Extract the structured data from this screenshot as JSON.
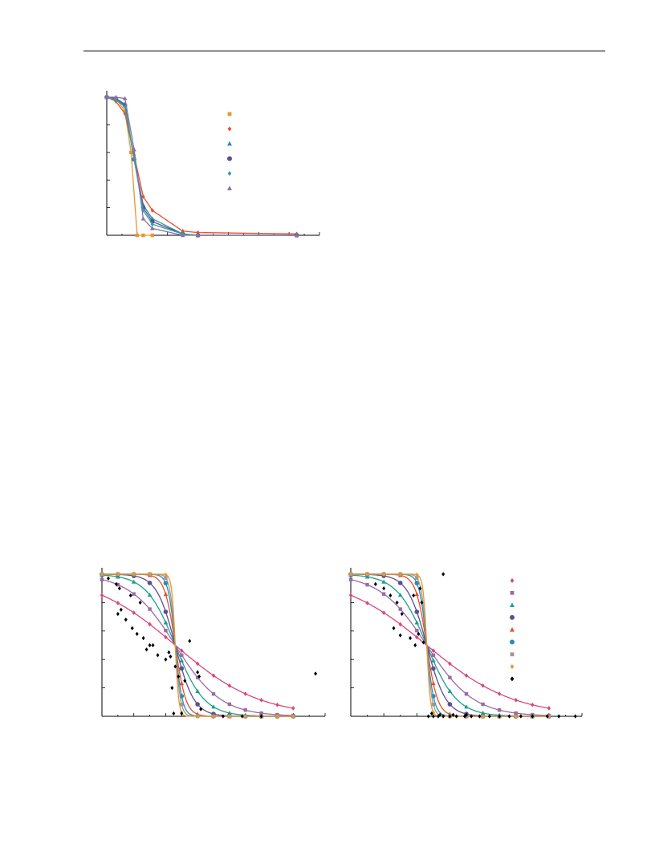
{
  "page": {
    "background": "#ffffff",
    "rule_color": "#000000"
  },
  "chart_data": [
    {
      "id": "top",
      "type": "line",
      "title": "",
      "xlabel": "",
      "ylabel": "",
      "xlim": [
        0,
        14
      ],
      "ylim": [
        0,
        1
      ],
      "grid": false,
      "legend": "top-right",
      "axis_ticks_x": [
        1,
        2,
        3,
        4,
        5,
        6,
        7,
        8,
        9,
        10,
        11,
        12,
        13,
        14
      ],
      "axis_ticks_y": [
        0.2,
        0.4,
        0.6,
        0.8,
        1.0
      ],
      "series": [
        {
          "marker": "square",
          "color": "#e8962e",
          "points": [
            [
              0,
              1.0
            ],
            [
              0.6,
              0.99
            ],
            [
              1.2,
              0.9
            ],
            [
              1.6,
              0.6
            ],
            [
              2.0,
              0.0
            ],
            [
              2.4,
              0.0
            ],
            [
              3.0,
              0.0
            ]
          ]
        },
        {
          "marker": "diamond",
          "color": "#e5502a",
          "points": [
            [
              0,
              1.0
            ],
            [
              0.6,
              0.97
            ],
            [
              1.2,
              0.88
            ],
            [
              1.8,
              0.58
            ],
            [
              2.4,
              0.28
            ],
            [
              3.0,
              0.18
            ],
            [
              5.0,
              0.03
            ],
            [
              6.0,
              0.02
            ],
            [
              12.5,
              0.01
            ]
          ]
        },
        {
          "marker": "triangle",
          "color": "#2b8bb8",
          "points": [
            [
              0,
              1.0
            ],
            [
              0.6,
              0.99
            ],
            [
              1.2,
              0.95
            ],
            [
              1.8,
              0.55
            ],
            [
              2.4,
              0.22
            ],
            [
              3.0,
              0.12
            ],
            [
              5.0,
              0.01
            ],
            [
              6.0,
              0.0
            ],
            [
              12.5,
              0.0
            ]
          ]
        },
        {
          "marker": "circle",
          "color": "#5a4f8f",
          "points": [
            [
              0,
              1.0
            ],
            [
              0.6,
              0.99
            ],
            [
              1.2,
              0.94
            ],
            [
              1.8,
              0.55
            ],
            [
              2.4,
              0.2
            ],
            [
              3.0,
              0.1
            ],
            [
              5.0,
              0.01
            ],
            [
              6.0,
              0.0
            ],
            [
              12.5,
              0.0
            ]
          ]
        },
        {
          "marker": "diamond",
          "color": "#2ba39e",
          "points": [
            [
              0,
              1.0
            ],
            [
              0.6,
              0.98
            ],
            [
              1.2,
              0.93
            ],
            [
              1.8,
              0.55
            ],
            [
              2.4,
              0.18
            ],
            [
              3.0,
              0.08
            ],
            [
              5.0,
              0.01
            ],
            [
              6.0,
              0.0
            ],
            [
              12.5,
              0.0
            ]
          ]
        },
        {
          "marker": "triangle",
          "color": "#8b6fa6",
          "points": [
            [
              0,
              1.0
            ],
            [
              0.6,
              1.0
            ],
            [
              1.2,
              0.99
            ],
            [
              1.8,
              0.62
            ],
            [
              2.4,
              0.12
            ],
            [
              3.0,
              0.05
            ],
            [
              5.0,
              0.0
            ],
            [
              6.0,
              0.0
            ],
            [
              12.5,
              0.0
            ]
          ]
        }
      ]
    },
    {
      "id": "bottom-left",
      "type": "line",
      "title": "",
      "xlabel": "",
      "ylabel": "",
      "xlim": [
        0,
        14
      ],
      "ylim": [
        0,
        1
      ],
      "grid": false,
      "legend": "none",
      "axis_ticks_x": [
        1,
        2,
        3,
        4,
        5,
        6,
        7,
        8,
        9,
        10,
        11,
        12,
        13,
        14
      ],
      "axis_ticks_y": [
        0.2,
        0.4,
        0.6,
        0.8,
        1.0
      ],
      "series": [
        {
          "marker": "diamond",
          "color": "#d9457a",
          "a": 0.38,
          "x": [
            0,
            1,
            2,
            3,
            4,
            5,
            6,
            7,
            8,
            9,
            10,
            11,
            12
          ]
        },
        {
          "marker": "square",
          "color": "#9a6aa8",
          "a": 0.7,
          "x": [
            0,
            1,
            2,
            3,
            4,
            5,
            6,
            7,
            8,
            9,
            10,
            11,
            12
          ]
        },
        {
          "marker": "triangle",
          "color": "#1e9e8c",
          "a": 1.1,
          "x": [
            0,
            1,
            2,
            3,
            4,
            5,
            6,
            7,
            8,
            9,
            10,
            11,
            12
          ]
        },
        {
          "marker": "circle",
          "color": "#5a4f8f",
          "a": 1.7,
          "x": [
            0,
            1,
            2,
            3,
            4,
            5,
            6,
            7,
            8,
            9,
            10,
            11,
            12
          ]
        },
        {
          "marker": "triangle",
          "color": "#e5502a",
          "a": 3,
          "x": [
            0,
            1,
            2,
            3,
            4,
            5,
            6,
            7,
            8,
            9,
            10,
            11,
            12
          ]
        },
        {
          "marker": "circle",
          "color": "#2b8bb8",
          "a": 4.5,
          "x": [
            0,
            1,
            2,
            3,
            4,
            5,
            6,
            7,
            8,
            9,
            10,
            11,
            12
          ]
        },
        {
          "marker": "square",
          "color": "#999999",
          "a": 6,
          "x": [
            0,
            1,
            2,
            3,
            4,
            5,
            6,
            7,
            8,
            9,
            10,
            11,
            12
          ]
        },
        {
          "marker": "diamond",
          "color": "#e8962e",
          "a": 9,
          "x": [
            0,
            1,
            2,
            3,
            4,
            5,
            6,
            7,
            8,
            9,
            10,
            11,
            12
          ]
        }
      ],
      "scatter": {
        "marker": "diamond",
        "color": "#000000",
        "points": [
          [
            0.9,
            0.93
          ],
          [
            1.1,
            0.9
          ],
          [
            1.0,
            0.72
          ],
          [
            1.2,
            0.75
          ],
          [
            1.5,
            0.68
          ],
          [
            1.9,
            0.62
          ],
          [
            2.2,
            0.58
          ],
          [
            2.6,
            0.55
          ],
          [
            3.0,
            0.5
          ],
          [
            3.2,
            0.5
          ],
          [
            3.5,
            0.43
          ],
          [
            2.8,
            0.47
          ],
          [
            4.0,
            0.4
          ],
          [
            4.2,
            0.45
          ],
          [
            4.3,
            0.42
          ],
          [
            5.5,
            0.53
          ],
          [
            6.0,
            0.31
          ],
          [
            6.1,
            0.28
          ],
          [
            5.2,
            0.25
          ],
          [
            4.8,
            0.28
          ],
          [
            4.6,
            0.35
          ],
          [
            4.4,
            0.2
          ],
          [
            13.4,
            0.3
          ],
          [
            6.2,
            0.05
          ],
          [
            7.6,
            0.0
          ],
          [
            8.8,
            0.0
          ],
          [
            10.0,
            0.0
          ],
          [
            4.5,
            0.02
          ],
          [
            5.0,
            0.02
          ],
          [
            1.8,
            0.85
          ],
          [
            2.4,
            0.8
          ],
          [
            0.4,
            0.97
          ]
        ]
      }
    },
    {
      "id": "bottom-right",
      "type": "line",
      "title": "",
      "xlabel": "",
      "ylabel": "",
      "xlim": [
        0,
        14
      ],
      "ylim": [
        0,
        1
      ],
      "grid": false,
      "legend": "top-right",
      "axis_ticks_x": [
        1,
        2,
        3,
        4,
        5,
        6,
        7,
        8,
        9,
        10,
        11,
        12,
        13,
        14
      ],
      "axis_ticks_y": [
        0.2,
        0.4,
        0.6,
        0.8,
        1.0
      ],
      "series": [
        {
          "marker": "diamond",
          "color": "#d9457a",
          "a": 0.38,
          "x": [
            0,
            1,
            2,
            3,
            4,
            5,
            6,
            7,
            8,
            9,
            10,
            11,
            12
          ]
        },
        {
          "marker": "square",
          "color": "#9a6aa8",
          "a": 0.7,
          "x": [
            0,
            1,
            2,
            3,
            4,
            5,
            6,
            7,
            8,
            9,
            10,
            11,
            12
          ]
        },
        {
          "marker": "triangle",
          "color": "#1e9e8c",
          "a": 1.1,
          "x": [
            0,
            1,
            2,
            3,
            4,
            5,
            6,
            7,
            8,
            9,
            10,
            11,
            12
          ]
        },
        {
          "marker": "circle",
          "color": "#5a4f8f",
          "a": 1.7,
          "x": [
            0,
            1,
            2,
            3,
            4,
            5,
            6,
            7,
            8,
            9,
            10,
            11,
            12
          ]
        },
        {
          "marker": "triangle",
          "color": "#e5502a",
          "a": 3,
          "x": [
            0,
            1,
            2,
            3,
            4,
            5,
            6,
            7,
            8,
            9,
            10,
            11,
            12
          ]
        },
        {
          "marker": "circle",
          "color": "#2b8bb8",
          "a": 4.5,
          "x": [
            0,
            1,
            2,
            3,
            4,
            5,
            6,
            7,
            8,
            9,
            10,
            11,
            12
          ]
        },
        {
          "marker": "square",
          "color": "#999999",
          "a": 6,
          "x": [
            0,
            1,
            2,
            3,
            4,
            5,
            6,
            7,
            8,
            9,
            10,
            11,
            12
          ]
        },
        {
          "marker": "diamond",
          "color": "#e8962e",
          "a": 9,
          "x": [
            0,
            1,
            2,
            3,
            4,
            5,
            6,
            7,
            8,
            9,
            10,
            11,
            12
          ]
        }
      ],
      "scatter": {
        "marker": "diamond",
        "color": "#000000",
        "points": [
          [
            1.5,
            0.93
          ],
          [
            2.0,
            0.9
          ],
          [
            2.4,
            0.85
          ],
          [
            2.8,
            0.8
          ],
          [
            3.1,
            0.72
          ],
          [
            2.6,
            0.62
          ],
          [
            3.0,
            0.57
          ],
          [
            3.6,
            0.55
          ],
          [
            4.1,
            0.58
          ],
          [
            3.9,
            0.5
          ],
          [
            4.4,
            0.52
          ],
          [
            5.6,
            1.0
          ],
          [
            4.2,
            0.9
          ],
          [
            4.3,
            0.8
          ],
          [
            3.8,
            0.85
          ],
          [
            4.7,
            0.0
          ],
          [
            5.0,
            0.0
          ],
          [
            5.3,
            0.0
          ],
          [
            5.6,
            0.0
          ],
          [
            6.0,
            0.0
          ],
          [
            6.4,
            0.0
          ],
          [
            6.9,
            0.0
          ],
          [
            7.3,
            0.0
          ],
          [
            7.8,
            0.0
          ],
          [
            8.4,
            0.0
          ],
          [
            9.0,
            0.0
          ],
          [
            9.6,
            0.0
          ],
          [
            10.3,
            0.0
          ],
          [
            11.0,
            0.0
          ],
          [
            11.9,
            0.0
          ],
          [
            12.6,
            0.0
          ],
          [
            13.6,
            0.0
          ],
          [
            4.9,
            0.02
          ],
          [
            5.4,
            0.01
          ],
          [
            6.2,
            0.01
          ],
          [
            7.0,
            0.01
          ]
        ]
      }
    }
  ]
}
